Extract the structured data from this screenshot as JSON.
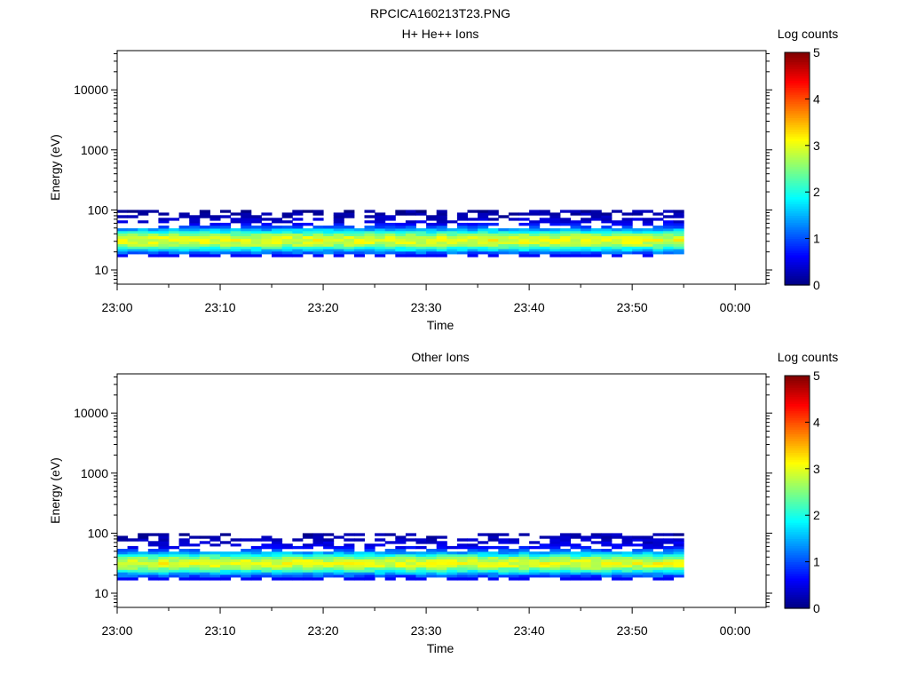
{
  "title": "RPCICA160213T23.PNG",
  "chart_data": [
    {
      "type": "heatmap",
      "title": "H+ He++ Ions",
      "xlabel": "Time",
      "ylabel": "Energy (eV)",
      "x_ticks": [
        "23:00",
        "23:10",
        "23:20",
        "23:30",
        "23:40",
        "23:50",
        "00:00"
      ],
      "xlim": [
        "23:00",
        "00:03"
      ],
      "y_ticks": [
        "10",
        "100",
        "1000",
        "10000"
      ],
      "y_scale": "log",
      "ylim": [
        5.8,
        45000
      ],
      "colorbar": {
        "label": "Log counts",
        "ticks": [
          "0",
          "1",
          "2",
          "3",
          "4",
          "5"
        ],
        "range": [
          0,
          5
        ]
      },
      "data_time_range": [
        "23:00",
        "23:55"
      ],
      "time_bin_minutes": 1,
      "energy_bins_eV": [
        17.5,
        19.5,
        21.5,
        23.5,
        26,
        28.5,
        31.5,
        35,
        39,
        43,
        47,
        52,
        58,
        64,
        70,
        78,
        86,
        95
      ],
      "log_counts_profile": [
        0.6,
        1.1,
        1.6,
        2.1,
        2.6,
        2.9,
        3.0,
        2.85,
        2.5,
        2.0,
        1.5,
        1.0,
        0.6,
        0.4,
        0.3,
        0.2,
        0.15,
        0.1
      ]
    },
    {
      "type": "heatmap",
      "title": "Other Ions",
      "xlabel": "Time",
      "ylabel": "Energy (eV)",
      "x_ticks": [
        "23:00",
        "23:10",
        "23:20",
        "23:30",
        "23:40",
        "23:50",
        "00:00"
      ],
      "xlim": [
        "23:00",
        "00:03"
      ],
      "y_ticks": [
        "10",
        "100",
        "1000",
        "10000"
      ],
      "y_scale": "log",
      "ylim": [
        5.8,
        45000
      ],
      "colorbar": {
        "label": "Log counts",
        "ticks": [
          "0",
          "1",
          "2",
          "3",
          "4",
          "5"
        ],
        "range": [
          0,
          5
        ]
      },
      "data_time_range": [
        "23:00",
        "23:55"
      ],
      "time_bin_minutes": 1,
      "energy_bins_eV": [
        17.5,
        19.5,
        21.5,
        23.5,
        26,
        28.5,
        31.5,
        35,
        39,
        43,
        47,
        52,
        58,
        64,
        70,
        78,
        86,
        95
      ],
      "log_counts_profile": [
        0.6,
        1.0,
        1.5,
        2.0,
        2.5,
        2.85,
        3.0,
        2.85,
        2.5,
        2.0,
        1.5,
        1.0,
        0.6,
        0.45,
        0.35,
        0.25,
        0.2,
        0.15
      ]
    }
  ]
}
